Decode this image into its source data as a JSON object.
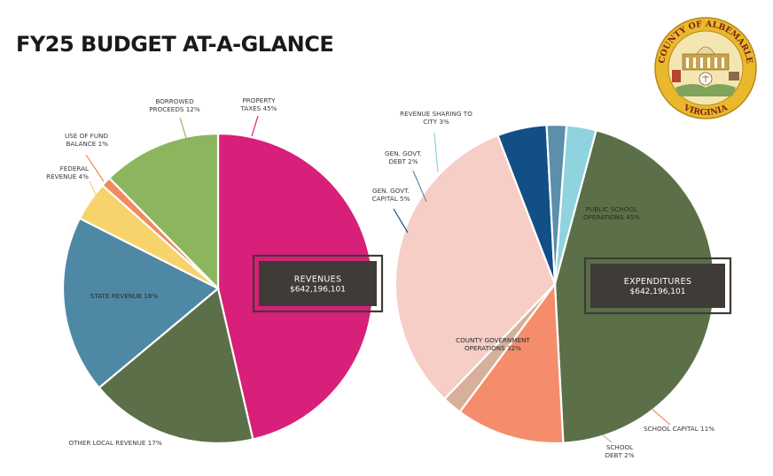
{
  "title": "FY25 BUDGET AT-A-GLANCE",
  "seal": {
    "icon": "county-seal-icon",
    "text_top": "COUNTY OF ALBEMARLE",
    "text_bottom": "VIRGINIA",
    "colors": {
      "ring": "#e9b92b",
      "inner": "#f4e6b0",
      "text": "#7a1f1f",
      "building": "#c9a24c"
    }
  },
  "chart_data": [
    {
      "type": "pie",
      "title": "",
      "center_label": {
        "title": "REVENUES",
        "value": "$642,196,101"
      },
      "slices": [
        {
          "label": "PROPERTY TAXES 45%",
          "value": 45,
          "color": "#d81f79"
        },
        {
          "label": "OTHER LOCAL REVENUE 17%",
          "value": 17,
          "color": "#5b7048"
        },
        {
          "label": "STATE REVENUE 18%",
          "value": 18,
          "color": "#4e88a5"
        },
        {
          "label": "FEDERAL REVENUE 4%",
          "value": 4,
          "color": "#f6d36b"
        },
        {
          "label": "USE OF FUND BALANCE 1%",
          "value": 1,
          "color": "#f18a5e"
        },
        {
          "label": "BORROWED PROCEEDS 12%",
          "value": 12,
          "color": "#8db55e"
        }
      ]
    },
    {
      "type": "pie",
      "title": "",
      "center_label": {
        "title": "EXPENDITURES",
        "value": "$642,196,101"
      },
      "slices": [
        {
          "label": "PUBLIC SCHOOL OPERATIONS 45%",
          "value": 45,
          "color": "#5b7048"
        },
        {
          "label": "SCHOOL CAPITAL 11%",
          "value": 11,
          "color": "#f58d6d"
        },
        {
          "label": "SCHOOL DEBT 2%",
          "value": 2,
          "color": "#d6b09a"
        },
        {
          "label": "COUNTY GOVERNMENT OPERATIONS 32%",
          "value": 32,
          "color": "#f6cec6"
        },
        {
          "label": "GEN. GOVT. CAPITAL 5%",
          "value": 5,
          "color": "#124f86"
        },
        {
          "label": "GEN. GOVT. DEBT 2%",
          "value": 2,
          "color": "#5b8fac"
        },
        {
          "label": "REVENUE SHARING TO CITY 3%",
          "value": 3,
          "color": "#8fd3de"
        }
      ]
    }
  ]
}
